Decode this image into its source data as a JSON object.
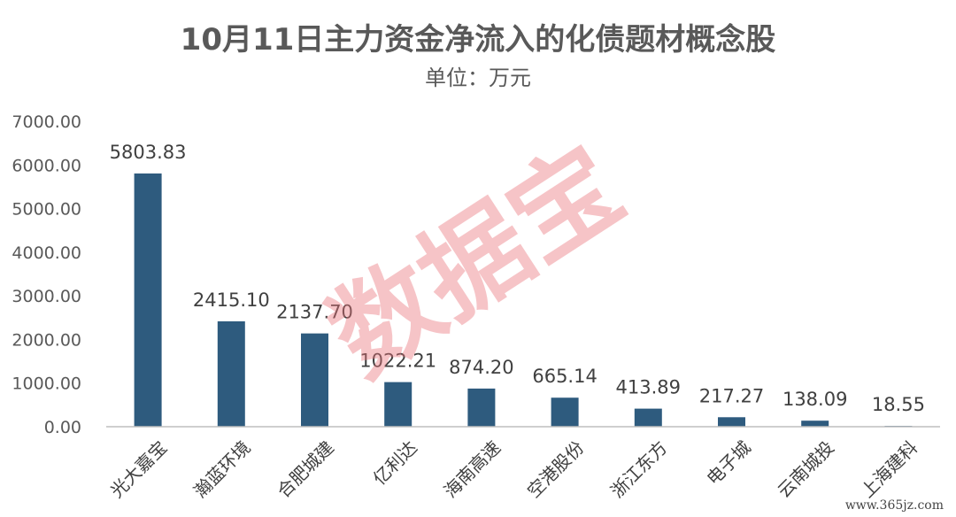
{
  "chart_data": {
    "type": "bar",
    "title": "10月11日主力资金净流入的化债题材概念股",
    "subtitle": "单位：万元",
    "categories": [
      "光大嘉宝",
      "瀚蓝环境",
      "合肥城建",
      "亿利达",
      "海南高速",
      "空港股份",
      "浙江东方",
      "电子城",
      "云南城投",
      "上海建科"
    ],
    "values": [
      5803.83,
      2415.1,
      2137.7,
      1022.21,
      874.2,
      665.14,
      413.89,
      217.27,
      138.09,
      18.55
    ],
    "value_labels": [
      "5803.83",
      "2415.10",
      "2137.70",
      "1022.21",
      "874.20",
      "665.14",
      "413.89",
      "217.27",
      "138.09",
      "18.55"
    ],
    "y_ticks": [
      "0.00",
      "1000.00",
      "2000.00",
      "3000.00",
      "4000.00",
      "5000.00",
      "6000.00",
      "7000.00"
    ],
    "ylim": [
      0,
      7000
    ],
    "grid": false,
    "legend": "none",
    "bar_color": "#2e5b7e"
  },
  "watermark": "数据宝",
  "footer": "www.365jz.com"
}
